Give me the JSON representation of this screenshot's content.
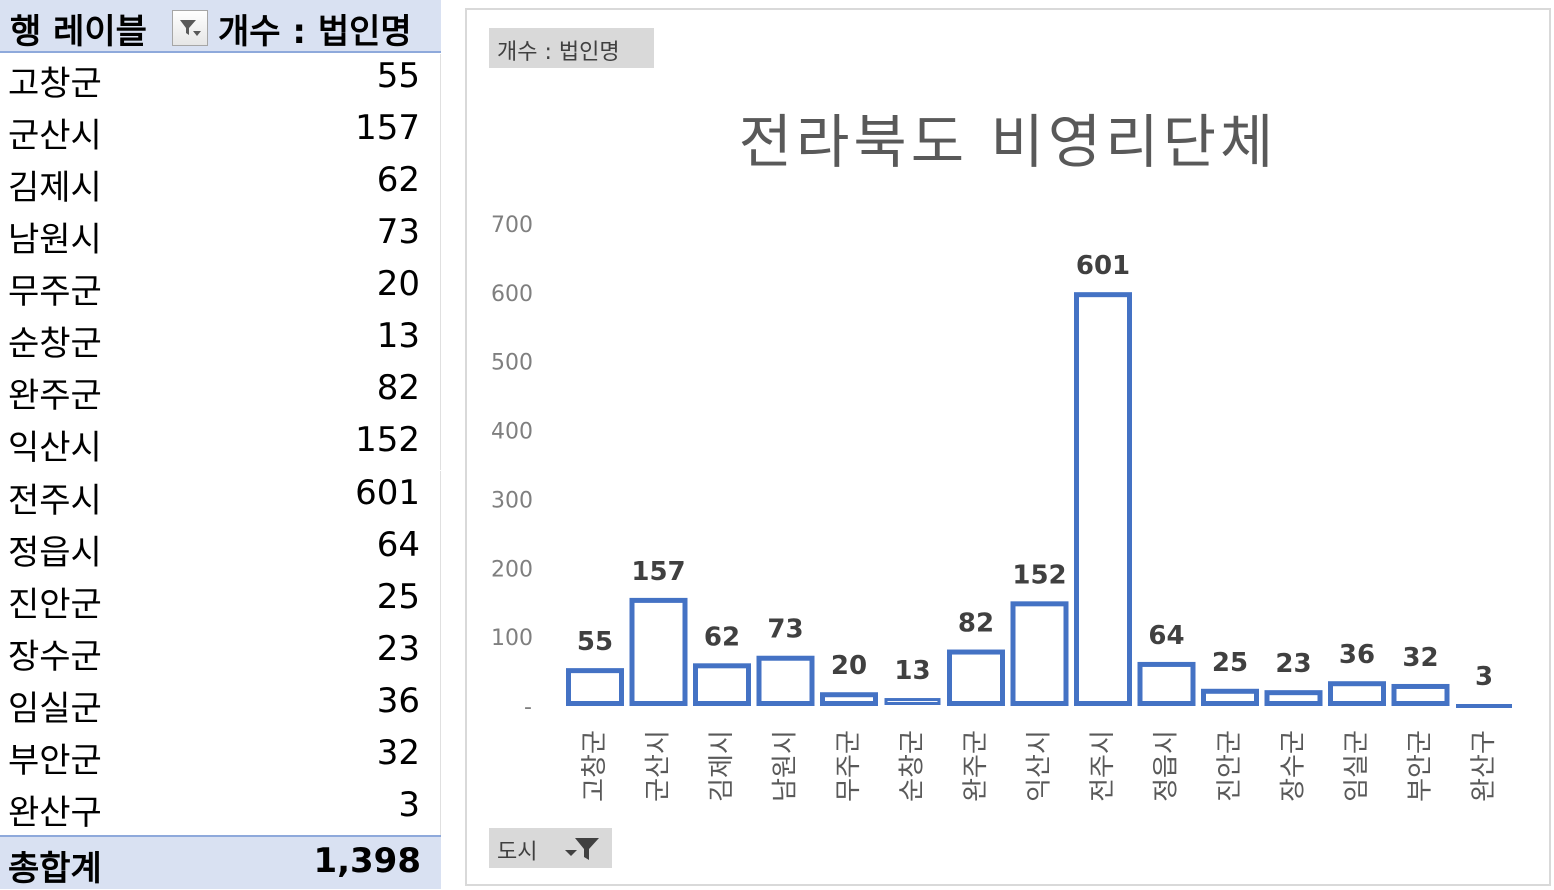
{
  "pivot": {
    "header_label": "행 레이블",
    "header_value": "개수 : 법인명",
    "rows": [
      {
        "label": "고창군",
        "value": "55"
      },
      {
        "label": "군산시",
        "value": "157"
      },
      {
        "label": "김제시",
        "value": "62"
      },
      {
        "label": "남원시",
        "value": "73"
      },
      {
        "label": "무주군",
        "value": "20"
      },
      {
        "label": "순창군",
        "value": "13"
      },
      {
        "label": "완주군",
        "value": "82"
      },
      {
        "label": "익산시",
        "value": "152"
      },
      {
        "label": "전주시",
        "value": "601"
      },
      {
        "label": "정읍시",
        "value": "64"
      },
      {
        "label": "진안군",
        "value": "25"
      },
      {
        "label": "장수군",
        "value": "23"
      },
      {
        "label": "임실군",
        "value": "36"
      },
      {
        "label": "부안군",
        "value": "32"
      },
      {
        "label": "완산구",
        "value": "3"
      }
    ],
    "total_label": "총합계",
    "total_value": "1,398"
  },
  "chart_buttons": {
    "value_field": "개수 : 법인명",
    "category_field": "도시"
  },
  "colors": {
    "bar_stroke": "#4472c4",
    "header_fill": "#d9e1f2"
  },
  "chart_data": {
    "type": "bar",
    "title": "전라북도 비영리단체",
    "categories": [
      "고창군",
      "군산시",
      "김제시",
      "남원시",
      "무주군",
      "순창군",
      "완주군",
      "익산시",
      "전주시",
      "정읍시",
      "진안군",
      "장수군",
      "임실군",
      "부안군",
      "완산구"
    ],
    "values": [
      55,
      157,
      62,
      73,
      20,
      13,
      82,
      152,
      601,
      64,
      25,
      23,
      36,
      32,
      3
    ],
    "ylim": [
      0,
      700
    ],
    "yticks": [
      "-",
      "100",
      "200",
      "300",
      "400",
      "500",
      "600",
      "700"
    ],
    "legend": "none",
    "grid": false
  }
}
